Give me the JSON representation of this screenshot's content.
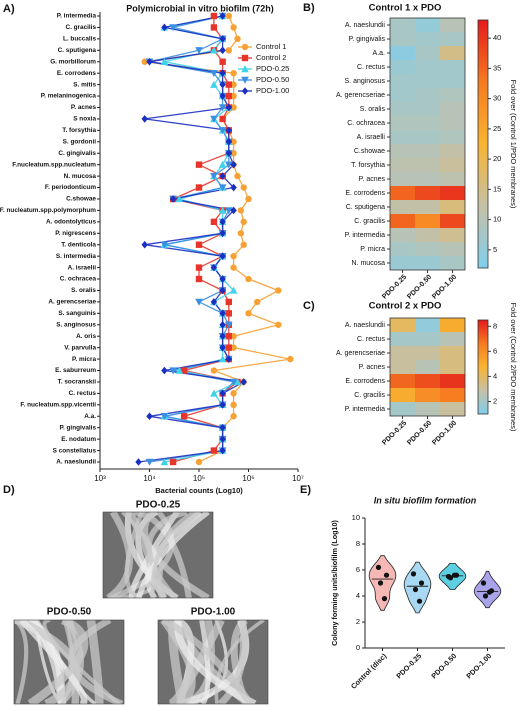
{
  "chart_data": [
    {
      "type": "line",
      "orientation": "horizontal",
      "panel_label": "A)",
      "title": "Polymicrobial in vitro biofilm (72h)",
      "x_label": "Bacterial counts (Log10)",
      "xscale": "log",
      "xlim": [
        1000,
        10000000
      ],
      "xticks": [
        {
          "value": 1000,
          "label": "10³"
        },
        {
          "value": 10000,
          "label": "10⁴"
        },
        {
          "value": 100000,
          "label": "10⁵"
        },
        {
          "value": 1000000,
          "label": "10⁶"
        },
        {
          "value": 10000000,
          "label": "10⁷"
        }
      ],
      "legend": "upper right",
      "categories": [
        "P. intermedia",
        "C. gracilis",
        "L. buccalis",
        "C. sputigena",
        "G. morbillorum",
        "E. corrodens",
        "S. mitis",
        "P. melaninogenica",
        "P. acnes",
        "S noxia",
        "T. forsythia",
        "S. gordonii",
        "C. gingivalis",
        "F.nucleatum.spp.nucleatum",
        "N. mucosa",
        "F. periodonticum",
        "C.showae",
        "F. nucleatum.spp.polymorphum",
        "A. odontolyticus",
        "P. nigrescens",
        "T. denticola",
        "S. intermedia",
        "A. israelii",
        "C. ochracea",
        "S. oralis",
        "A. gerencseriae",
        "S. sanguinis",
        "S. anginosus",
        "A. oris",
        "V. parvulla",
        "P. micra",
        "E. saburreum",
        "T. socranskii",
        "C. rectus",
        "F. nucleatum.spp.vicentii",
        "A.a.",
        "P. gingivalis",
        "E. nodatum",
        "S constellatus",
        "A. naeslundii"
      ],
      "series": [
        {
          "name": "Control 1",
          "color": "#f7a033",
          "marker": "circle",
          "values": [
            400000,
            500000,
            600000,
            400000,
            8000,
            500000,
            500000,
            500000,
            500000,
            300000,
            400000,
            500000,
            500000,
            500000,
            600000,
            800000,
            1000000,
            700000,
            800000,
            700000,
            800000,
            500000,
            500000,
            1000000,
            4000000,
            1500000,
            1000000,
            4000000,
            500000,
            500000,
            7000000,
            200000,
            800000,
            500000,
            500000,
            500000,
            300000,
            300000,
            300000,
            100000
          ]
        },
        {
          "name": "Control 2",
          "color": "#e8352b",
          "marker": "square",
          "values": [
            200000,
            200000,
            300000,
            200000,
            300000,
            300000,
            400000,
            400000,
            400000,
            300000,
            400000,
            400000,
            400000,
            100000,
            300000,
            100000,
            30000,
            300000,
            200000,
            300000,
            100000,
            300000,
            100000,
            100000,
            300000,
            400000,
            400000,
            400000,
            400000,
            400000,
            400000,
            50000,
            600000,
            300000,
            300000,
            50000,
            300000,
            300000,
            200000,
            30000
          ]
        },
        {
          "name": "PDO-0.25",
          "color": "#3fd3ea",
          "marker": "triangle-up",
          "values": [
            300000,
            20000,
            300000,
            200000,
            20000,
            300000,
            200000,
            300000,
            400000,
            200000,
            300000,
            400000,
            400000,
            300000,
            200000,
            300000,
            40000,
            300000,
            300000,
            300000,
            20000,
            300000,
            200000,
            300000,
            500000,
            200000,
            300000,
            300000,
            300000,
            300000,
            300000,
            40000,
            600000,
            200000,
            300000,
            20000,
            300000,
            300000,
            300000,
            20000
          ]
        },
        {
          "name": "PDO-0.50",
          "color": "#3b8fe2",
          "marker": "triangle-down",
          "values": [
            300000,
            30000,
            300000,
            100000,
            10000,
            200000,
            300000,
            300000,
            300000,
            200000,
            300000,
            400000,
            400000,
            400000,
            200000,
            300000,
            30000,
            400000,
            300000,
            300000,
            20000,
            300000,
            200000,
            300000,
            300000,
            100000,
            300000,
            400000,
            300000,
            300000,
            400000,
            30000,
            500000,
            300000,
            300000,
            20000,
            300000,
            300000,
            300000,
            10000
          ]
        },
        {
          "name": "PDO-1.00",
          "color": "#1b2fc0",
          "marker": "diamond",
          "values": [
            300000,
            20000,
            300000,
            300000,
            10000,
            300000,
            300000,
            300000,
            400000,
            8000,
            400000,
            400000,
            400000,
            500000,
            300000,
            500000,
            30000,
            500000,
            300000,
            300000,
            8000,
            300000,
            200000,
            300000,
            300000,
            200000,
            300000,
            300000,
            300000,
            300000,
            400000,
            20000,
            800000,
            300000,
            300000,
            10000,
            300000,
            300000,
            300000,
            6000
          ]
        }
      ]
    },
    {
      "type": "heatmap",
      "panel_label": "B)",
      "title": "Control 1 x PDO",
      "colorbar_label": "Fold over (Control 1/PDO membranes)",
      "rows": [
        "A. naeslundii",
        "P. gingivalis",
        "A.a.",
        "C. rectus",
        "S. anginosus",
        "A. gerencseriae",
        "S. oralis",
        "C. ochracea",
        "A. israelli",
        "C.showae",
        "T. forsythia",
        "P. acnes",
        "E. corrodens",
        "C. sputigena",
        "C. gracilis",
        "P. intermedia",
        "P. micra",
        "N. mucosa"
      ],
      "columns": [
        "PDO-0.25",
        "PDO-0.50",
        "PDO-1.00"
      ],
      "values": [
        [
          8,
          5,
          10
        ],
        [
          8,
          7,
          8
        ],
        [
          4,
          8,
          15
        ],
        [
          6,
          7,
          7
        ],
        [
          7,
          7,
          7
        ],
        [
          7,
          8,
          9
        ],
        [
          8,
          8,
          10
        ],
        [
          9,
          9,
          10
        ],
        [
          8,
          8,
          9
        ],
        [
          10,
          10,
          12
        ],
        [
          11,
          11,
          13
        ],
        [
          10,
          10,
          11
        ],
        [
          35,
          38,
          40
        ],
        [
          12,
          12,
          16
        ],
        [
          35,
          30,
          38
        ],
        [
          10,
          12,
          14
        ],
        [
          8,
          9,
          10
        ],
        [
          6,
          6,
          8
        ]
      ],
      "clim": [
        2,
        43
      ],
      "cticks": [
        5,
        10,
        15,
        20,
        25,
        30,
        35,
        40
      ],
      "colors": [
        "#80cfee",
        "#c5c0a6",
        "#f8b431",
        "#f67a20",
        "#e41a1c"
      ]
    },
    {
      "type": "heatmap",
      "panel_label": "C)",
      "title": "Control 2 x PDO",
      "colorbar_label": "Fold over (Control 2/PDO membranes)",
      "rows": [
        "A. naeslundii",
        "C. rectus",
        "A. gerencseriae",
        "P. acnes",
        "E. corrodens",
        "C. gracilis",
        "P. intermedia"
      ],
      "columns": [
        "PDO-0.25",
        "PDO-0.50",
        "PDO-1.00"
      ],
      "values": [
        [
          4,
          1.5,
          5
        ],
        [
          2,
          2,
          2.5
        ],
        [
          3,
          3,
          3.5
        ],
        [
          3,
          2.5,
          3.5
        ],
        [
          7,
          7.5,
          8
        ],
        [
          5,
          6,
          6.5
        ],
        [
          2,
          2.5,
          3
        ]
      ],
      "clim": [
        1,
        8.5
      ],
      "cticks": [
        2,
        4,
        6,
        8
      ],
      "colors": [
        "#80cfee",
        "#c5c0a6",
        "#f8b431",
        "#f67a20",
        "#e41a1c"
      ]
    },
    {
      "type": "violin",
      "panel_label": "E)",
      "title": "In situ biofilm formation",
      "y_label": "Colony forming units/biofilm (Log10)",
      "ylim": [
        0,
        10
      ],
      "yticks": [
        0,
        2,
        4,
        6,
        8,
        10
      ],
      "categories": [
        "Control (disc)",
        "PDO-0.25",
        "PDO-0.50",
        "PDO-1.00"
      ],
      "colors": [
        "#f5b8b5",
        "#a8d8f2",
        "#5ccfe0",
        "#a9a4ea"
      ],
      "values": [
        [
          6.2,
          5.6,
          5.0,
          3.8
        ],
        [
          5.7,
          5.0,
          4.5,
          3.6
        ],
        [
          5.5,
          5.6,
          5.4,
          5.6
        ],
        [
          5.0,
          4.4,
          4.0,
          4.3
        ]
      ]
    }
  ],
  "figure_d": {
    "panel_label": "D)",
    "images": [
      "PDO-0.25",
      "PDO-0.50",
      "PDO-1.00"
    ]
  }
}
